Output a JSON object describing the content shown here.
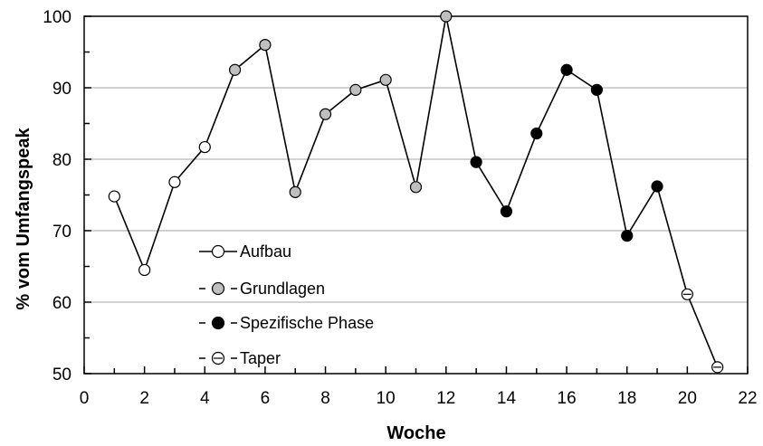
{
  "chart_data": {
    "type": "line",
    "xlabel": "Woche",
    "ylabel": "% vom Umfangspeak",
    "xlim": [
      0,
      22
    ],
    "ylim": [
      50,
      100
    ],
    "x_ticks": [
      "0",
      "2",
      "4",
      "6",
      "8",
      "10",
      "12",
      "14",
      "16",
      "18",
      "20",
      "22"
    ],
    "y_ticks": [
      "50",
      "60",
      "70",
      "80",
      "90",
      "100"
    ],
    "grid": "horizontal",
    "legend_position": "bottom-left inside",
    "series": [
      {
        "name": "Aufbau",
        "marker": "open-circle",
        "fill": "#ffffff",
        "points": [
          [
            1,
            74.8
          ],
          [
            2,
            64.5
          ],
          [
            3,
            76.8
          ],
          [
            4,
            81.7
          ]
        ]
      },
      {
        "name": "Grundlagen",
        "marker": "gray-circle",
        "fill": "#bfbfbf",
        "points": [
          [
            5,
            92.5
          ],
          [
            6,
            96.0
          ],
          [
            7,
            75.4
          ],
          [
            8,
            86.3
          ],
          [
            9,
            89.7
          ],
          [
            10,
            91.1
          ],
          [
            11,
            76.1
          ],
          [
            12,
            100.0
          ]
        ]
      },
      {
        "name": "Spezifische Phase",
        "marker": "black-circle",
        "fill": "#000000",
        "points": [
          [
            13,
            79.6
          ],
          [
            14,
            72.7
          ],
          [
            15,
            83.6
          ],
          [
            16,
            92.5
          ],
          [
            17,
            89.7
          ],
          [
            18,
            69.3
          ],
          [
            19,
            76.2
          ]
        ]
      },
      {
        "name": "Taper",
        "marker": "open-circle-dashed",
        "fill": "#ffffff",
        "points": [
          [
            20,
            61.1
          ],
          [
            21,
            50.9
          ]
        ]
      }
    ],
    "legend": [
      "Aufbau",
      "Grundlagen",
      "Spezifische Phase",
      "Taper"
    ]
  }
}
